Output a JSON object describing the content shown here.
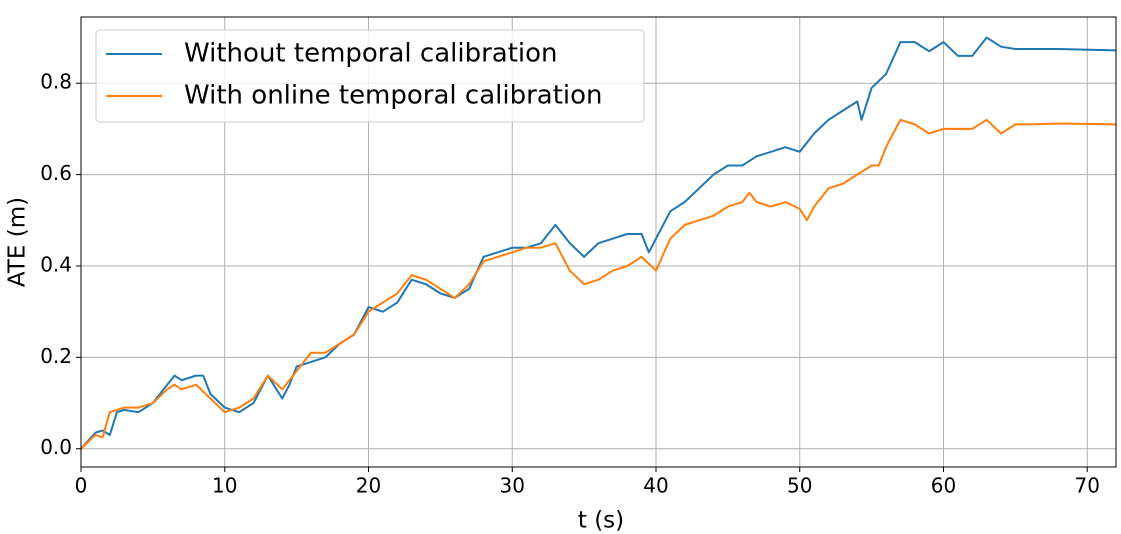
{
  "chart_data": {
    "type": "line",
    "x_label": "t (s)",
    "y_label": "ATE (m)",
    "xlim": [
      0,
      72
    ],
    "ylim": [
      -0.04,
      0.945
    ],
    "xticks": [
      0,
      10,
      20,
      30,
      40,
      50,
      60,
      70
    ],
    "yticks": [
      {
        "value": 0,
        "label": "0.0"
      },
      0.2,
      0.4,
      0.6,
      0.8
    ],
    "grid": true,
    "legend": "upper left",
    "series": [
      {
        "name": "Without temporal calibration",
        "color": "#1f77b4",
        "x": [
          0,
          1,
          1.5,
          2,
          2.5,
          3,
          4,
          5,
          6,
          6.5,
          7,
          8,
          8.5,
          9,
          10,
          11,
          12,
          13,
          14,
          14.5,
          15,
          16,
          17,
          18,
          19,
          20,
          21,
          22,
          23,
          24,
          25,
          26,
          27,
          28,
          29,
          30,
          31,
          32,
          33,
          34,
          35,
          36,
          37,
          38,
          39,
          39.5,
          40,
          41,
          42,
          43,
          44,
          45,
          46,
          47,
          48,
          49,
          50,
          51,
          52,
          53,
          54,
          54.3,
          55,
          56,
          57,
          58,
          59,
          60,
          61,
          62,
          63,
          64,
          65,
          66,
          68,
          72
        ],
        "values": [
          0,
          0.035,
          0.04,
          0.03,
          0.08,
          0.085,
          0.08,
          0.1,
          0.14,
          0.16,
          0.15,
          0.16,
          0.16,
          0.12,
          0.09,
          0.08,
          0.1,
          0.16,
          0.11,
          0.14,
          0.18,
          0.19,
          0.2,
          0.23,
          0.25,
          0.31,
          0.3,
          0.32,
          0.37,
          0.36,
          0.34,
          0.33,
          0.35,
          0.42,
          0.43,
          0.44,
          0.44,
          0.45,
          0.49,
          0.45,
          0.42,
          0.45,
          0.46,
          0.47,
          0.47,
          0.43,
          0.46,
          0.52,
          0.54,
          0.57,
          0.6,
          0.62,
          0.62,
          0.64,
          0.65,
          0.66,
          0.65,
          0.69,
          0.72,
          0.74,
          0.76,
          0.72,
          0.79,
          0.82,
          0.89,
          0.89,
          0.87,
          0.89,
          0.86,
          0.86,
          0.9,
          0.88,
          0.875,
          0.875,
          0.875,
          0.872
        ]
      },
      {
        "name": "With online temporal calibration",
        "color": "#ff7f0e",
        "x": [
          0,
          1,
          1.5,
          2,
          3,
          4,
          5,
          6,
          6.5,
          7,
          8,
          9,
          10,
          11,
          12,
          13,
          14,
          15,
          16,
          17,
          18,
          19,
          20,
          21,
          22,
          23,
          24,
          25,
          26,
          27,
          28,
          29,
          30,
          31,
          32,
          33,
          34,
          35,
          36,
          37,
          38,
          39,
          40,
          41,
          42,
          43,
          44,
          45,
          46,
          46.5,
          47,
          48,
          49,
          50,
          50.5,
          51,
          52,
          53,
          54,
          55,
          55.5,
          56,
          57,
          58,
          59,
          60,
          61,
          62,
          63,
          64,
          65,
          66,
          68,
          72
        ],
        "values": [
          0,
          0.03,
          0.025,
          0.08,
          0.09,
          0.09,
          0.1,
          0.13,
          0.14,
          0.13,
          0.14,
          0.11,
          0.08,
          0.09,
          0.11,
          0.16,
          0.13,
          0.17,
          0.21,
          0.21,
          0.23,
          0.25,
          0.3,
          0.32,
          0.34,
          0.38,
          0.37,
          0.35,
          0.33,
          0.36,
          0.41,
          0.42,
          0.43,
          0.44,
          0.44,
          0.45,
          0.39,
          0.36,
          0.37,
          0.39,
          0.4,
          0.42,
          0.39,
          0.46,
          0.49,
          0.5,
          0.51,
          0.53,
          0.54,
          0.56,
          0.54,
          0.53,
          0.54,
          0.525,
          0.5,
          0.53,
          0.57,
          0.58,
          0.6,
          0.62,
          0.62,
          0.66,
          0.72,
          0.71,
          0.69,
          0.7,
          0.7,
          0.7,
          0.72,
          0.69,
          0.71,
          0.71,
          0.712,
          0.71
        ]
      }
    ]
  }
}
